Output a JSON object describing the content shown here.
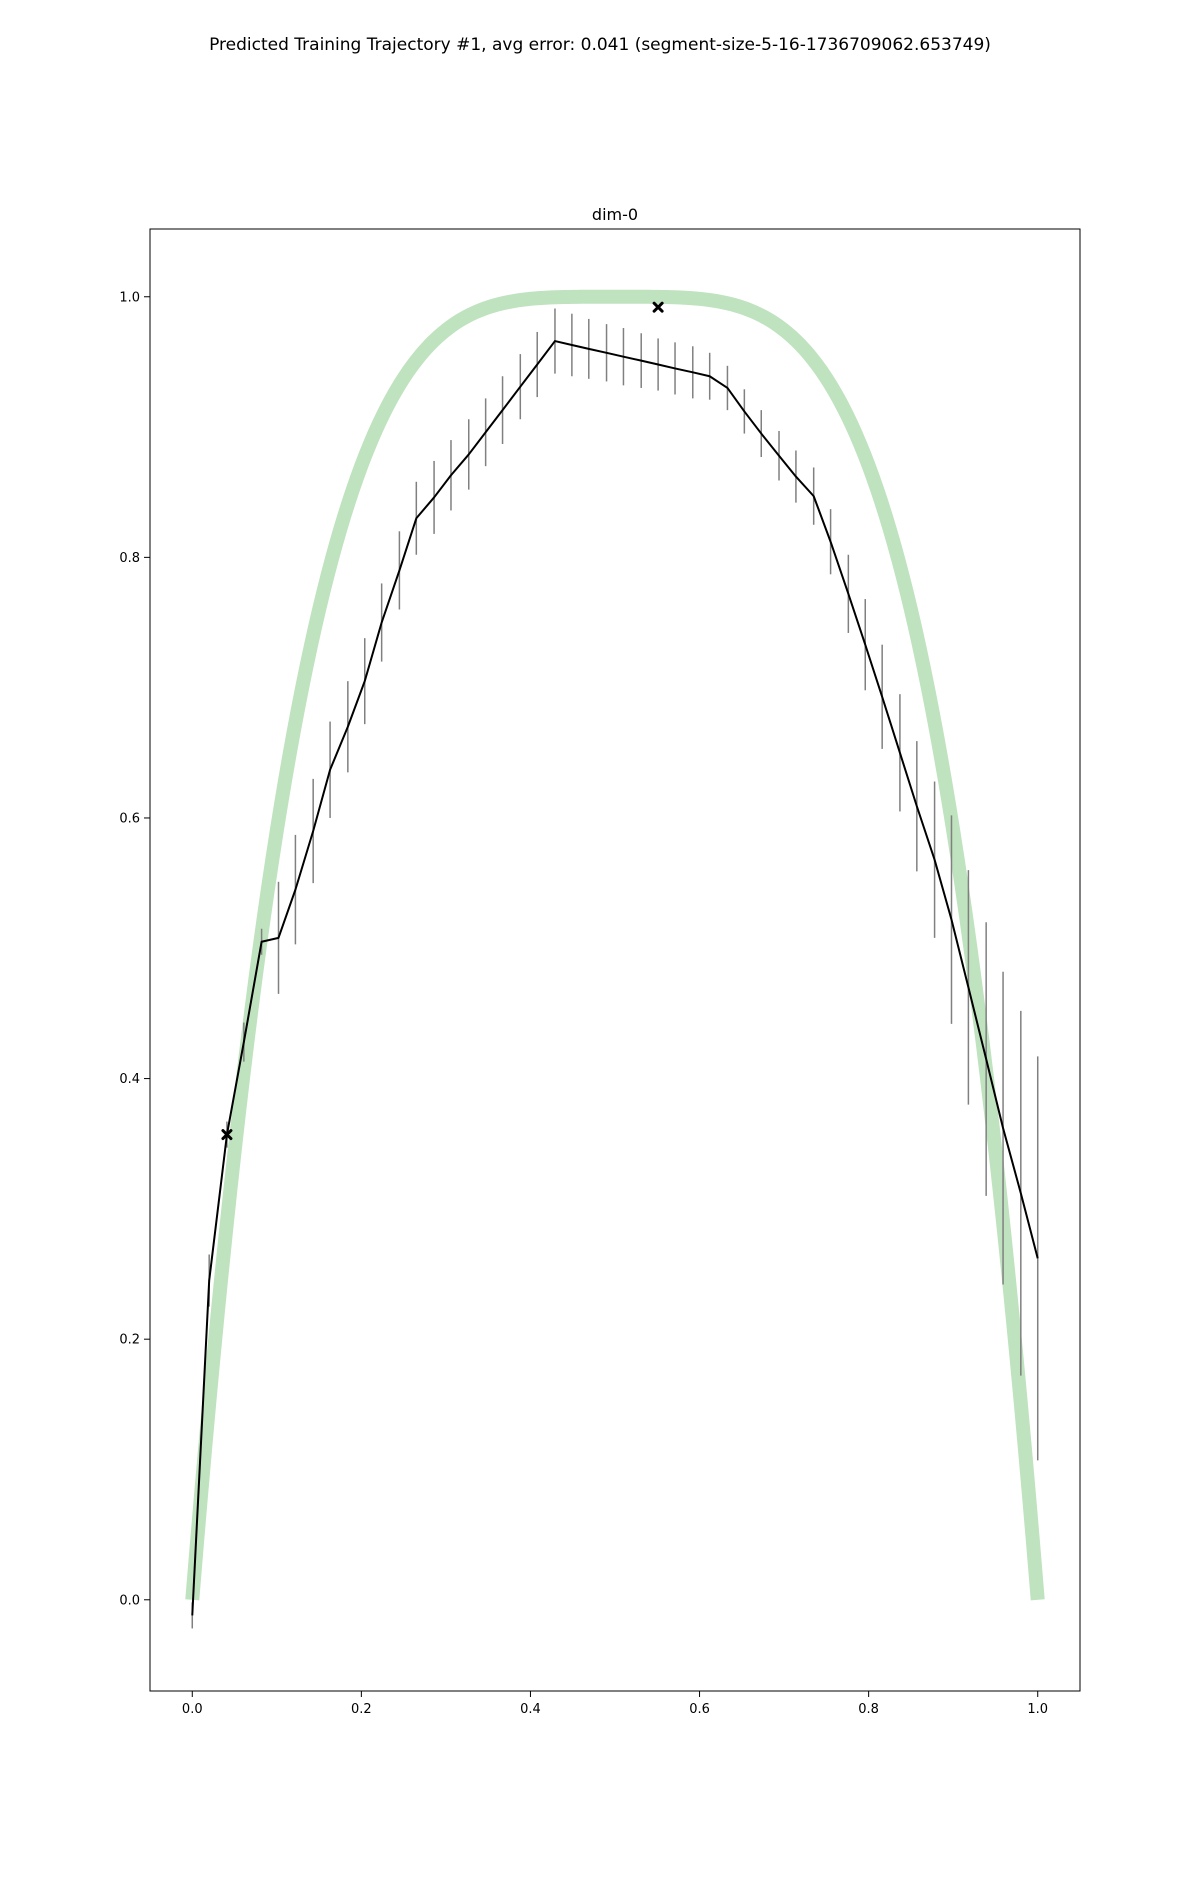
{
  "figure": {
    "suptitle": "Predicted Training Trajectory #1, avg error: 0.041 (segment-size-5-16-1736709062.653749)"
  },
  "chart_data": {
    "type": "line",
    "title": "dim-0",
    "xlabel": "",
    "ylabel": "",
    "xlim": [
      -0.05,
      1.05
    ],
    "ylim": [
      -0.07,
      1.052
    ],
    "x_ticks": [
      0.0,
      0.2,
      0.4,
      0.6,
      0.8,
      1.0
    ],
    "x_tick_labels": [
      "0.0",
      "0.2",
      "0.4",
      "0.6",
      "0.8",
      "1.0"
    ],
    "y_ticks": [
      0.0,
      0.2,
      0.4,
      0.6,
      0.8,
      1.0
    ],
    "y_tick_labels": [
      "0.0",
      "0.2",
      "0.4",
      "0.6",
      "0.8",
      "1.0"
    ],
    "grid": false,
    "legend": null,
    "series": [
      {
        "role": "ground-truth",
        "style": "thick translucent line",
        "color": "#2ca02c",
        "opacity": 0.3,
        "equation": "y = 1 - (2x - 1)^4",
        "x_range": [
          0.0,
          1.0
        ]
      },
      {
        "role": "prediction",
        "style": "line with error bars",
        "color": "#000000",
        "errorbar_color": "#808080",
        "x": [
          0.0,
          0.02,
          0.041,
          0.061,
          0.082,
          0.102,
          0.122,
          0.143,
          0.163,
          0.184,
          0.204,
          0.224,
          0.245,
          0.265,
          0.286,
          0.306,
          0.327,
          0.347,
          0.367,
          0.388,
          0.408,
          0.429,
          0.449,
          0.469,
          0.49,
          0.51,
          0.531,
          0.551,
          0.571,
          0.592,
          0.612,
          0.633,
          0.653,
          0.673,
          0.694,
          0.714,
          0.735,
          0.755,
          0.776,
          0.796,
          0.816,
          0.837,
          0.857,
          0.878,
          0.898,
          0.918,
          0.939,
          0.959,
          0.98,
          1.0
        ],
        "y": [
          -0.012,
          0.245,
          0.357,
          0.428,
          0.505,
          0.508,
          0.545,
          0.59,
          0.637,
          0.67,
          0.705,
          0.75,
          0.79,
          0.83,
          0.846,
          0.863,
          0.879,
          0.896,
          0.913,
          0.931,
          0.948,
          0.966,
          0.963,
          0.96,
          0.957,
          0.954,
          0.951,
          0.948,
          0.945,
          0.942,
          0.939,
          0.93,
          0.912,
          0.895,
          0.878,
          0.862,
          0.847,
          0.812,
          0.772,
          0.733,
          0.693,
          0.65,
          0.609,
          0.568,
          0.522,
          0.47,
          0.415,
          0.362,
          0.312,
          0.262
        ],
        "yerr": [
          0.01,
          0.02,
          0.01,
          0.015,
          0.01,
          0.043,
          0.042,
          0.04,
          0.037,
          0.035,
          0.033,
          0.03,
          0.03,
          0.028,
          0.028,
          0.027,
          0.027,
          0.026,
          0.026,
          0.025,
          0.025,
          0.025,
          0.024,
          0.023,
          0.022,
          0.022,
          0.021,
          0.02,
          0.02,
          0.02,
          0.018,
          0.017,
          0.017,
          0.018,
          0.019,
          0.02,
          0.022,
          0.025,
          0.03,
          0.035,
          0.04,
          0.045,
          0.05,
          0.06,
          0.08,
          0.09,
          0.105,
          0.12,
          0.14,
          0.155
        ]
      }
    ],
    "markers": [
      {
        "shape": "x-marker",
        "color": "#000000",
        "x": 0.041,
        "y": 0.357
      },
      {
        "shape": "x-marker",
        "color": "#000000",
        "x": 0.551,
        "y": 0.992
      }
    ]
  }
}
